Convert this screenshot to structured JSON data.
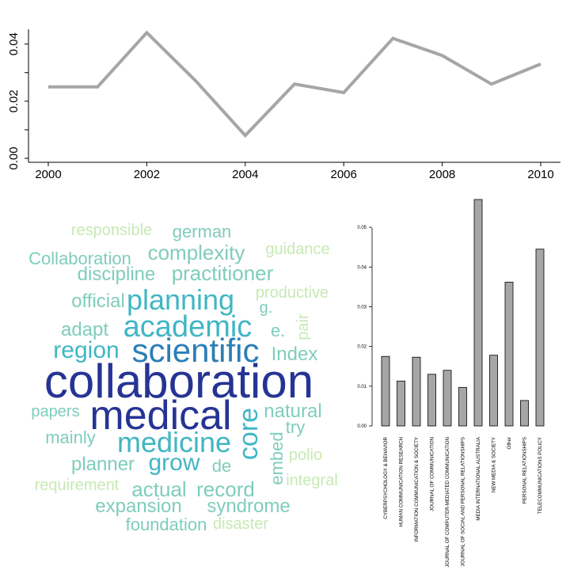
{
  "chart_data": [
    {
      "type": "line",
      "x": [
        2000,
        2001,
        2002,
        2003,
        2004,
        2005,
        2006,
        2007,
        2008,
        2009,
        2010
      ],
      "values": [
        0.025,
        0.025,
        0.044,
        0.027,
        0.008,
        0.026,
        0.023,
        0.042,
        0.036,
        0.026,
        0.033
      ],
      "xticks": [
        "2000",
        "2002",
        "2004",
        "2006",
        "2008",
        "2010"
      ],
      "yticks": [
        "0.00",
        "0.02",
        "0.04"
      ],
      "xlim": [
        2000,
        2010
      ],
      "ylim": [
        0,
        0.046
      ],
      "color": "#a6a6a6"
    },
    {
      "type": "wordcloud",
      "words": [
        {
          "text": "collaboration",
          "weight": 60,
          "color": "#253494"
        },
        {
          "text": "medical",
          "weight": 52,
          "color": "#253494"
        },
        {
          "text": "scientific",
          "weight": 42,
          "color": "#2c7fb8"
        },
        {
          "text": "academic",
          "weight": 38,
          "color": "#41b6c4"
        },
        {
          "text": "planning",
          "weight": 36,
          "color": "#41b6c4"
        },
        {
          "text": "medicine",
          "weight": 36,
          "color": "#41b6c4"
        },
        {
          "text": "core",
          "weight": 34,
          "color": "#41b6c4"
        },
        {
          "text": "grow",
          "weight": 30,
          "color": "#41b6c4"
        },
        {
          "text": "region",
          "weight": 30,
          "color": "#41b6c4"
        },
        {
          "text": "complexity",
          "weight": 26,
          "color": "#7fcdbb"
        },
        {
          "text": "practitioner",
          "weight": 26,
          "color": "#7fcdbb"
        },
        {
          "text": "actual",
          "weight": 26,
          "color": "#7fcdbb"
        },
        {
          "text": "record",
          "weight": 26,
          "color": "#7fcdbb"
        },
        {
          "text": "discipline",
          "weight": 24,
          "color": "#7fcdbb"
        },
        {
          "text": "official",
          "weight": 24,
          "color": "#7fcdbb"
        },
        {
          "text": "adapt",
          "weight": 24,
          "color": "#7fcdbb"
        },
        {
          "text": "Index",
          "weight": 24,
          "color": "#7fcdbb"
        },
        {
          "text": "natural",
          "weight": 24,
          "color": "#7fcdbb"
        },
        {
          "text": "planner",
          "weight": 24,
          "color": "#7fcdbb"
        },
        {
          "text": "expansion",
          "weight": 24,
          "color": "#7fcdbb"
        },
        {
          "text": "syndrome",
          "weight": 24,
          "color": "#7fcdbb"
        },
        {
          "text": "mainly",
          "weight": 22,
          "color": "#7fcdbb"
        },
        {
          "text": "embed",
          "weight": 22,
          "color": "#7fcdbb"
        },
        {
          "text": "de",
          "weight": 22,
          "color": "#7fcdbb"
        },
        {
          "text": "e.",
          "weight": 22,
          "color": "#7fcdbb"
        },
        {
          "text": "try",
          "weight": 22,
          "color": "#7fcdbb"
        },
        {
          "text": "foundation",
          "weight": 22,
          "color": "#7fcdbb"
        },
        {
          "text": "Collaboration",
          "weight": 22,
          "color": "#7fcdbb"
        },
        {
          "text": "german",
          "weight": 22,
          "color": "#7fcdbb"
        },
        {
          "text": "papers",
          "weight": 20,
          "color": "#7fcdbb"
        },
        {
          "text": "g.",
          "weight": 20,
          "color": "#7fcdbb"
        },
        {
          "text": "responsible",
          "weight": 20,
          "color": "#c7e9b4"
        },
        {
          "text": "guidance",
          "weight": 20,
          "color": "#c7e9b4"
        },
        {
          "text": "productive",
          "weight": 20,
          "color": "#c7e9b4"
        },
        {
          "text": "pair",
          "weight": 20,
          "color": "#c7e9b4"
        },
        {
          "text": "polio",
          "weight": 20,
          "color": "#c7e9b4"
        },
        {
          "text": "integral",
          "weight": 20,
          "color": "#c7e9b4"
        },
        {
          "text": "requirement",
          "weight": 20,
          "color": "#c7e9b4"
        },
        {
          "text": "disaster",
          "weight": 20,
          "color": "#c7e9b4"
        }
      ]
    },
    {
      "type": "bar",
      "categories": [
        "CYBERPSYCHOLOGY & BEHAVIOR",
        "HUMAN COMMUNICATION RESEARCH",
        "INFORMATION COMMUNICATION & SOCIETY",
        "JOURNAL OF COMMUNICATION",
        "JOURNAL OF COMPUTER-MEDIATED COMMUNICATION",
        "JOURNAL OF SOCIAL AND PERSONAL RELATIONSHIPS",
        "MEDIA INTERNATIONAL AUSTRALIA",
        "NEW MEDIA & SOCIETY",
        "Other",
        "PERSONAL RELATIONSHIPS",
        "TELECOMMUNICATIONS POLICY"
      ],
      "values": [
        0.0175,
        0.0113,
        0.0173,
        0.013,
        0.014,
        0.0097,
        0.057,
        0.0178,
        0.0362,
        0.0064,
        0.0445
      ],
      "yticks": [
        "0.00",
        "0.01",
        "0.02",
        "0.03",
        "0.04",
        "0.05"
      ],
      "ylim": [
        0,
        0.057
      ],
      "bar_color": "#a6a6a6"
    }
  ]
}
